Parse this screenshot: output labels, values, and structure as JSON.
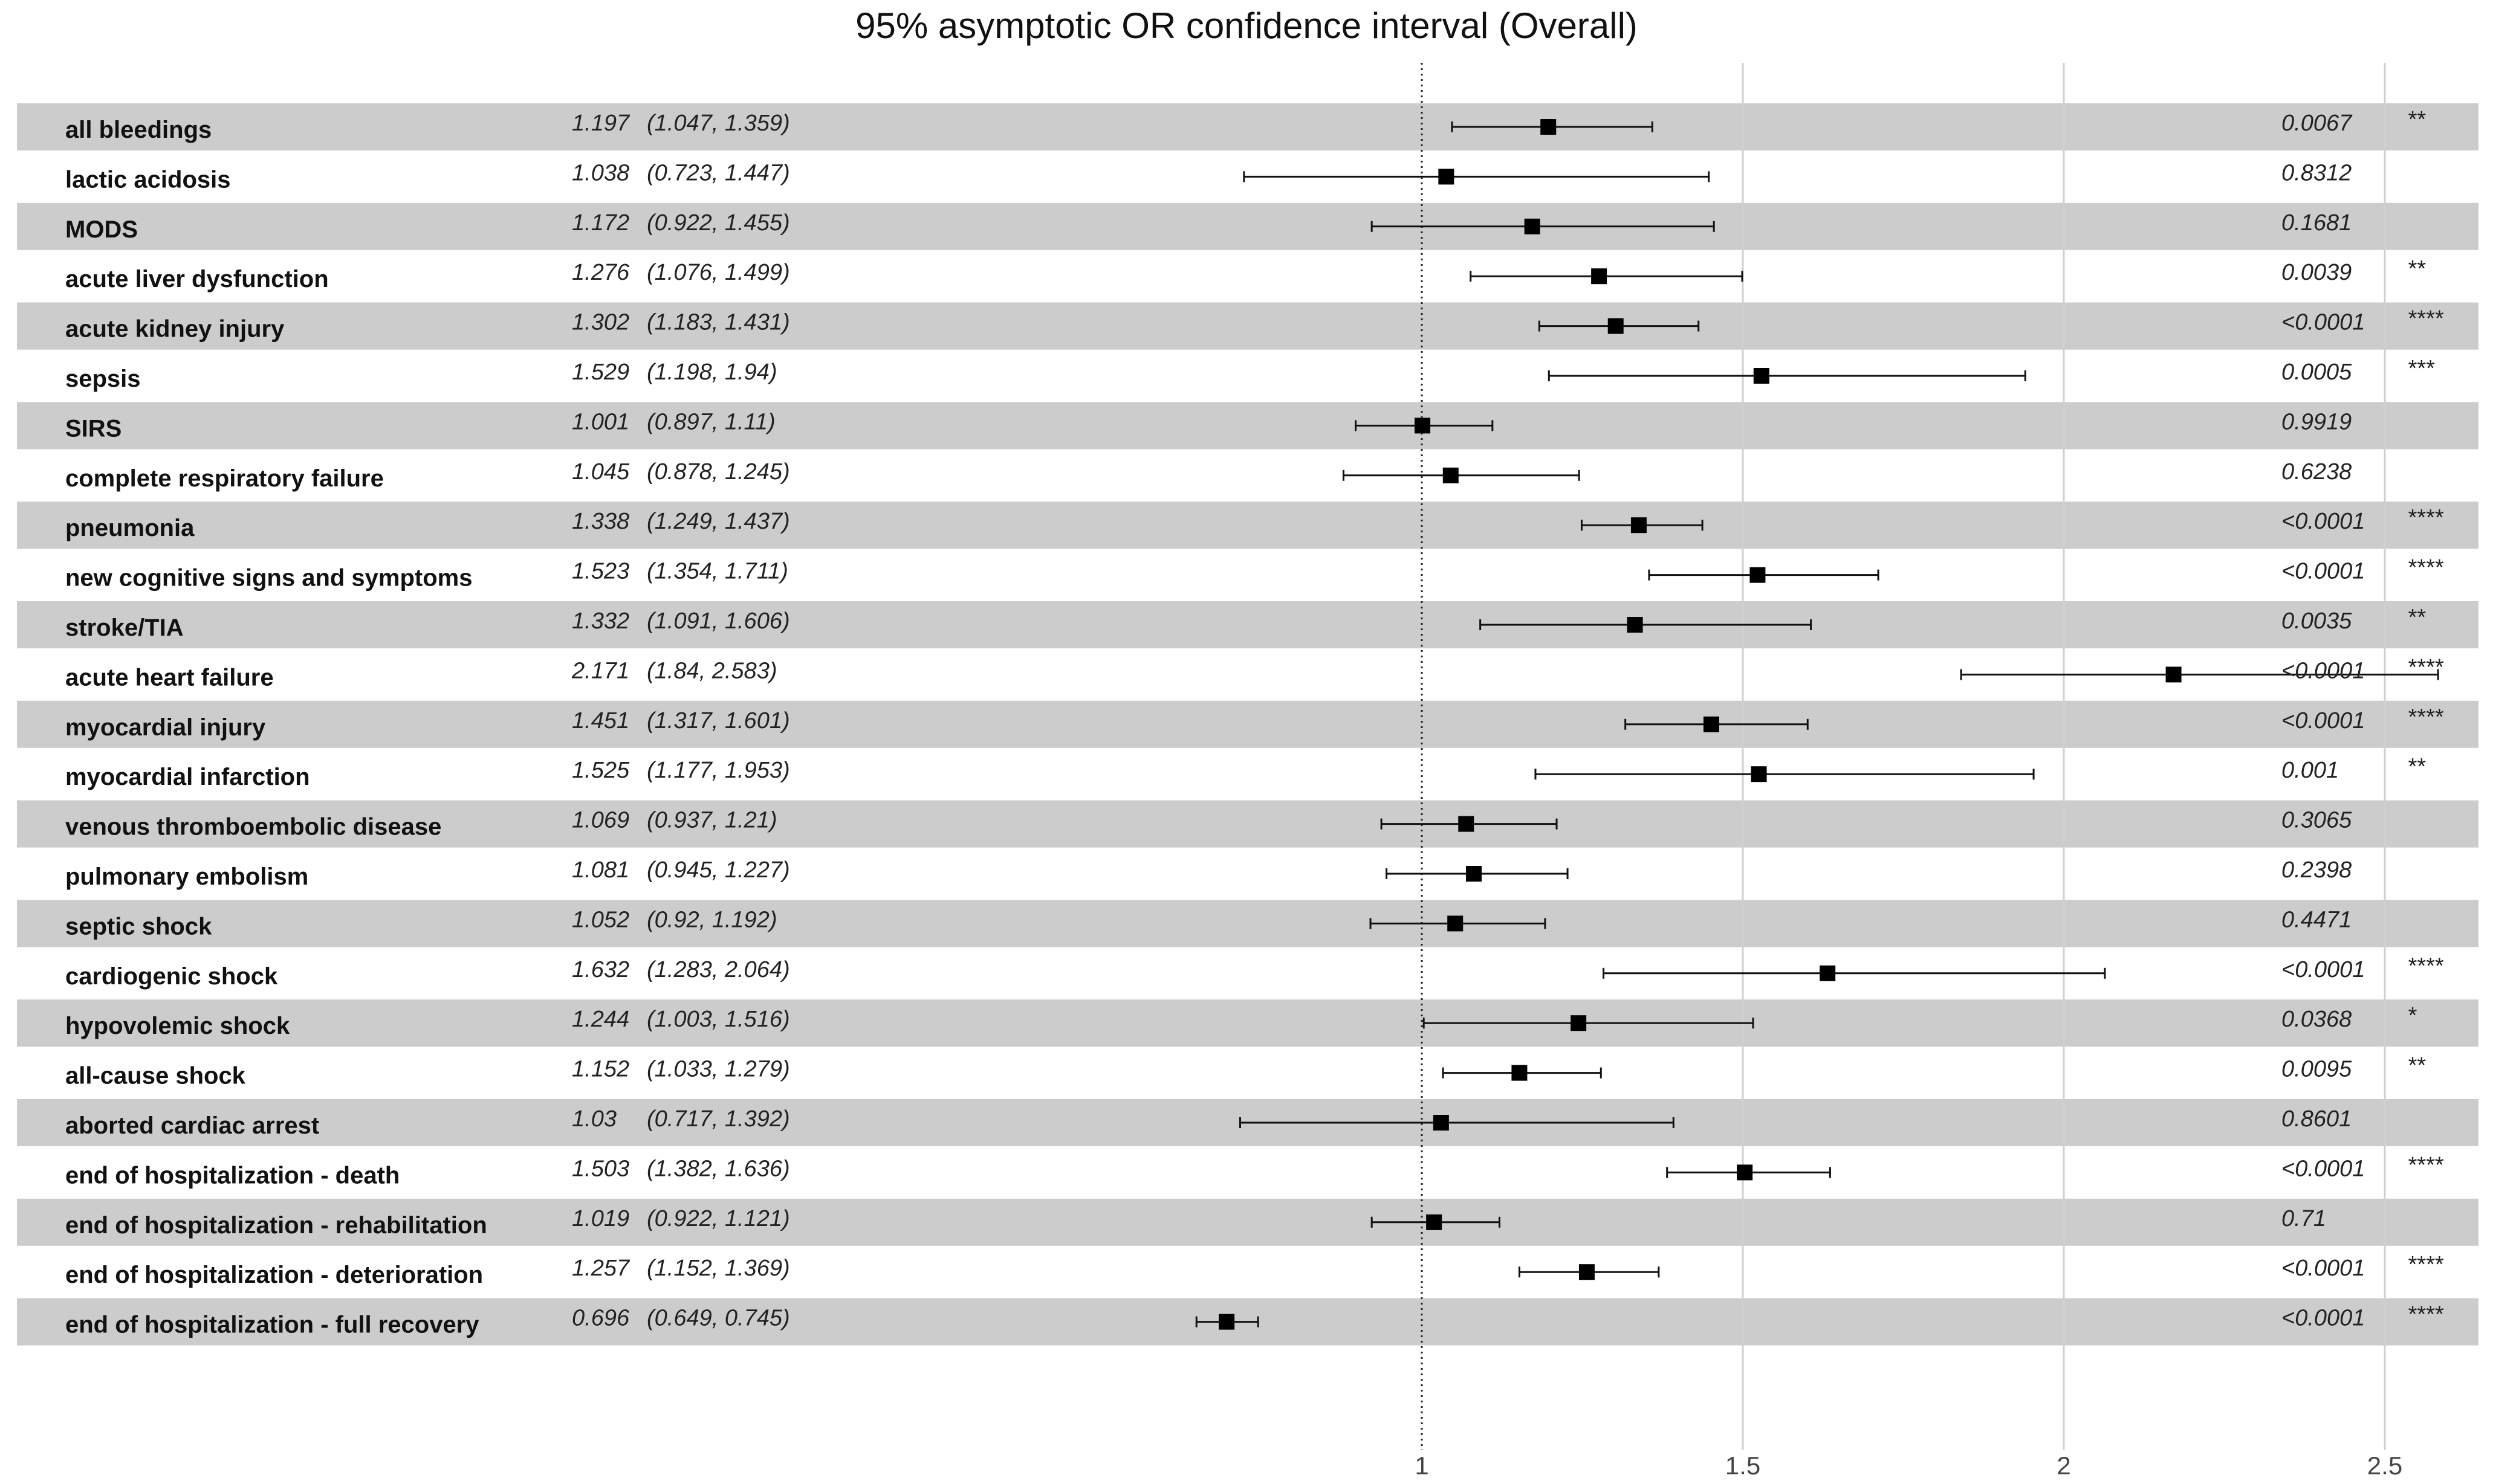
{
  "chart_data": {
    "type": "forest",
    "title": "95% asymptotic OR confidence interval (Overall)",
    "x_ticks": [
      "1",
      "1.5",
      "2",
      "2.5"
    ],
    "x_tick_values": [
      1,
      1.5,
      2,
      2.5
    ],
    "reference_line": 1,
    "row_band_color": "#cccccc",
    "rows": [
      {
        "label": "all bleedings",
        "or_text": "1.197",
        "ci_text": "(1.047, 1.359)",
        "or": 1.197,
        "lo": 1.047,
        "hi": 1.359,
        "p": "0.0067",
        "sig": "**"
      },
      {
        "label": "lactic acidosis",
        "or_text": "1.038",
        "ci_text": "(0.723, 1.447)",
        "or": 1.038,
        "lo": 0.723,
        "hi": 1.447,
        "p": "0.8312",
        "sig": ""
      },
      {
        "label": "MODS",
        "or_text": "1.172",
        "ci_text": "(0.922, 1.455)",
        "or": 1.172,
        "lo": 0.922,
        "hi": 1.455,
        "p": "0.1681",
        "sig": ""
      },
      {
        "label": "acute liver dysfunction",
        "or_text": "1.276",
        "ci_text": "(1.076, 1.499)",
        "or": 1.276,
        "lo": 1.076,
        "hi": 1.499,
        "p": "0.0039",
        "sig": "**"
      },
      {
        "label": "acute kidney injury",
        "or_text": "1.302",
        "ci_text": "(1.183, 1.431)",
        "or": 1.302,
        "lo": 1.183,
        "hi": 1.431,
        "p": "<0.0001",
        "sig": "****"
      },
      {
        "label": "sepsis",
        "or_text": "1.529",
        "ci_text": "(1.198, 1.94)",
        "or": 1.529,
        "lo": 1.198,
        "hi": 1.94,
        "p": "0.0005",
        "sig": "***"
      },
      {
        "label": "SIRS",
        "or_text": "1.001",
        "ci_text": "(0.897, 1.11)",
        "or": 1.001,
        "lo": 0.897,
        "hi": 1.11,
        "p": "0.9919",
        "sig": ""
      },
      {
        "label": "complete respiratory failure",
        "or_text": "1.045",
        "ci_text": "(0.878, 1.245)",
        "or": 1.045,
        "lo": 0.878,
        "hi": 1.245,
        "p": "0.6238",
        "sig": ""
      },
      {
        "label": "pneumonia",
        "or_text": "1.338",
        "ci_text": "(1.249, 1.437)",
        "or": 1.338,
        "lo": 1.249,
        "hi": 1.437,
        "p": "<0.0001",
        "sig": "****"
      },
      {
        "label": "new cognitive signs and symptoms",
        "or_text": "1.523",
        "ci_text": "(1.354, 1.711)",
        "or": 1.523,
        "lo": 1.354,
        "hi": 1.711,
        "p": "<0.0001",
        "sig": "****"
      },
      {
        "label": "stroke/TIA",
        "or_text": "1.332",
        "ci_text": "(1.091, 1.606)",
        "or": 1.332,
        "lo": 1.091,
        "hi": 1.606,
        "p": "0.0035",
        "sig": "**"
      },
      {
        "label": "acute heart failure",
        "or_text": "2.171",
        "ci_text": "(1.84, 2.583)",
        "or": 2.171,
        "lo": 1.84,
        "hi": 2.583,
        "p": "<0.0001",
        "sig": "****"
      },
      {
        "label": "myocardial injury",
        "or_text": "1.451",
        "ci_text": "(1.317, 1.601)",
        "or": 1.451,
        "lo": 1.317,
        "hi": 1.601,
        "p": "<0.0001",
        "sig": "****"
      },
      {
        "label": "myocardial infarction",
        "or_text": "1.525",
        "ci_text": "(1.177, 1.953)",
        "or": 1.525,
        "lo": 1.177,
        "hi": 1.953,
        "p": "0.001",
        "sig": "**"
      },
      {
        "label": "venous thromboembolic disease",
        "or_text": "1.069",
        "ci_text": "(0.937, 1.21)",
        "or": 1.069,
        "lo": 0.937,
        "hi": 1.21,
        "p": "0.3065",
        "sig": ""
      },
      {
        "label": "pulmonary embolism",
        "or_text": "1.081",
        "ci_text": "(0.945, 1.227)",
        "or": 1.081,
        "lo": 0.945,
        "hi": 1.227,
        "p": "0.2398",
        "sig": ""
      },
      {
        "label": "septic shock",
        "or_text": "1.052",
        "ci_text": "(0.92, 1.192)",
        "or": 1.052,
        "lo": 0.92,
        "hi": 1.192,
        "p": "0.4471",
        "sig": ""
      },
      {
        "label": "cardiogenic shock",
        "or_text": "1.632",
        "ci_text": "(1.283, 2.064)",
        "or": 1.632,
        "lo": 1.283,
        "hi": 2.064,
        "p": "<0.0001",
        "sig": "****"
      },
      {
        "label": "hypovolemic shock",
        "or_text": "1.244",
        "ci_text": "(1.003, 1.516)",
        "or": 1.244,
        "lo": 1.003,
        "hi": 1.516,
        "p": "0.0368",
        "sig": "*"
      },
      {
        "label": "all-cause shock",
        "or_text": "1.152",
        "ci_text": "(1.033, 1.279)",
        "or": 1.152,
        "lo": 1.033,
        "hi": 1.279,
        "p": "0.0095",
        "sig": "**"
      },
      {
        "label": "aborted cardiac arrest",
        "or_text": "1.03",
        "ci_text": "(0.717, 1.392)",
        "or": 1.03,
        "lo": 0.717,
        "hi": 1.392,
        "p": "0.8601",
        "sig": ""
      },
      {
        "label": "end of hospitalization - death",
        "or_text": "1.503",
        "ci_text": "(1.382, 1.636)",
        "or": 1.503,
        "lo": 1.382,
        "hi": 1.636,
        "p": "<0.0001",
        "sig": "****"
      },
      {
        "label": "end of hospitalization - rehabilitation",
        "or_text": "1.019",
        "ci_text": "(0.922, 1.121)",
        "or": 1.019,
        "lo": 0.922,
        "hi": 1.121,
        "p": "0.71",
        "sig": ""
      },
      {
        "label": "end of hospitalization - deterioration",
        "or_text": "1.257",
        "ci_text": "(1.152, 1.369)",
        "or": 1.257,
        "lo": 1.152,
        "hi": 1.369,
        "p": "<0.0001",
        "sig": "****"
      },
      {
        "label": "end of hospitalization - full recovery",
        "or_text": "0.696",
        "ci_text": "(0.649, 0.745)",
        "or": 0.696,
        "lo": 0.649,
        "hi": 0.745,
        "p": "<0.0001",
        "sig": "****"
      }
    ]
  }
}
